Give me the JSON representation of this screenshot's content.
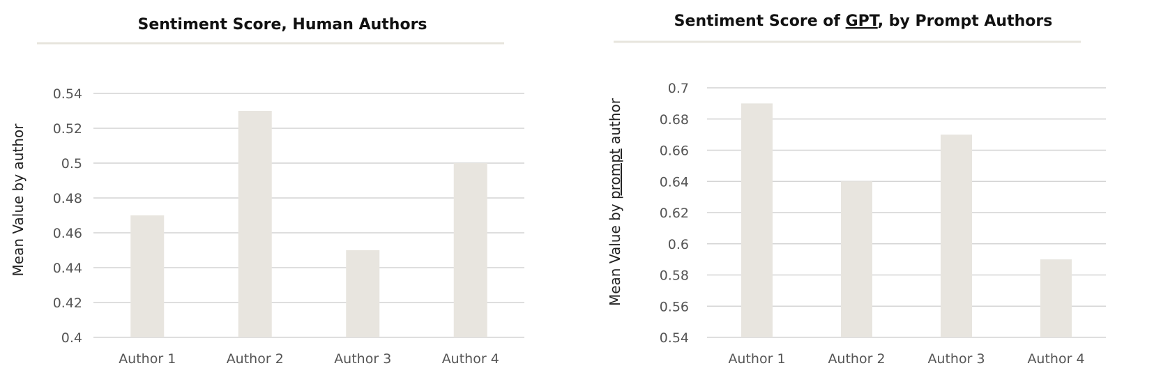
{
  "chart_data": [
    {
      "type": "bar",
      "title": "Sentiment Score, Human Authors",
      "title_underlined_word": "",
      "categories": [
        "Author 1",
        "Author 2",
        "Author 3",
        "Author 4"
      ],
      "values": [
        0.47,
        0.53,
        0.45,
        0.5
      ],
      "xlabel": "",
      "ylabel": "Mean Value by author",
      "ylabel_underlined_word": "",
      "ylim": [
        0.4,
        0.54
      ],
      "yticks": [
        0.4,
        0.42,
        0.44,
        0.46,
        0.48,
        0.5,
        0.52,
        0.54
      ],
      "ytick_labels": [
        "0.4",
        "0.42",
        "0.44",
        "0.46",
        "0.48",
        "0.5",
        "0.52",
        "0.54"
      ],
      "grid": true,
      "bar_color": "#e8e5df"
    },
    {
      "type": "bar",
      "title": "Sentiment Score of GPT, by Prompt Authors",
      "title_underlined_word": "GPT",
      "categories": [
        "Author 1",
        "Author 2",
        "Author 3",
        "Author 4"
      ],
      "values": [
        0.69,
        0.64,
        0.67,
        0.59
      ],
      "xlabel": "",
      "ylabel": "Mean Value by prompt author",
      "ylabel_underlined_word": "prompt",
      "ylim": [
        0.54,
        0.7
      ],
      "yticks": [
        0.54,
        0.56,
        0.58,
        0.6,
        0.62,
        0.64,
        0.66,
        0.68,
        0.7
      ],
      "ytick_labels": [
        "0.54",
        "0.56",
        "0.58",
        "0.6",
        "0.62",
        "0.64",
        "0.66",
        "0.68",
        "0.7"
      ],
      "grid": true,
      "bar_color": "#e8e5df"
    }
  ]
}
